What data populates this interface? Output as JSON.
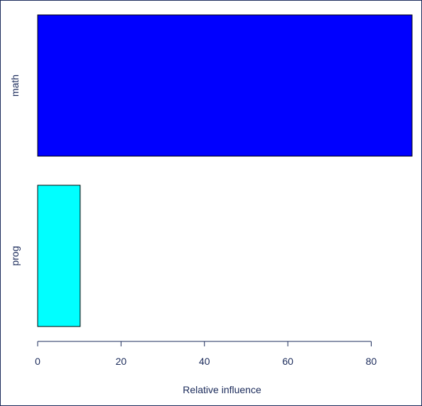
{
  "chart_data": {
    "type": "bar",
    "orientation": "horizontal",
    "categories": [
      "math",
      "prog"
    ],
    "values": [
      89.8,
      10.2
    ],
    "colors": [
      "#0000ff",
      "#00ffff"
    ],
    "xlabel": "Relative influence",
    "ylabel": "",
    "xlim": [
      0,
      89.8
    ],
    "xticks": [
      0,
      20,
      40,
      60,
      80
    ],
    "grid": false,
    "legend": "none"
  }
}
